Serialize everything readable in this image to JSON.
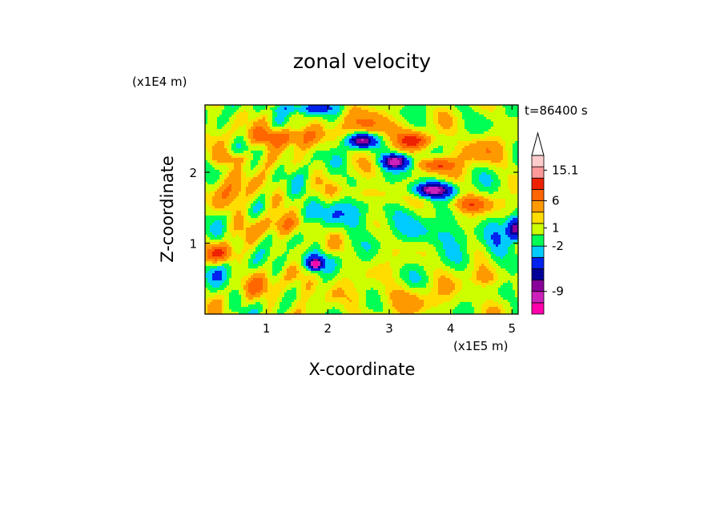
{
  "chart_data": {
    "type": "heatmap",
    "title": "zonal velocity",
    "xlabel": "X-coordinate",
    "ylabel": "Z-coordinate",
    "x_unit": "(x1E5 m)",
    "y_unit": "(x1E4 m)",
    "time_label": "t=86400 s",
    "xlim": [
      0,
      5.1
    ],
    "ylim": [
      0,
      2.95
    ],
    "x_ticks": [
      {
        "value": 1,
        "label": "1"
      },
      {
        "value": 2,
        "label": "2"
      },
      {
        "value": 3,
        "label": "3"
      },
      {
        "value": 4,
        "label": "4"
      },
      {
        "value": 5,
        "label": "5"
      }
    ],
    "y_ticks": [
      {
        "value": 1,
        "label": "1"
      },
      {
        "value": 2,
        "label": "2"
      }
    ],
    "colorbar": {
      "levels": [
        {
          "color": "#ff00aa"
        },
        {
          "color": "#cc22bb"
        },
        {
          "color": "#880099"
        },
        {
          "color": "#000099"
        },
        {
          "color": "#0022ee"
        },
        {
          "color": "#00ccff"
        },
        {
          "color": "#00ff55"
        },
        {
          "color": "#ccff00"
        },
        {
          "color": "#ffdd00"
        },
        {
          "color": "#ff9900"
        },
        {
          "color": "#ff6600"
        },
        {
          "color": "#ee2200"
        },
        {
          "color": "#ff9999"
        },
        {
          "color": "#ffcccc"
        },
        {
          "color": "#ffffff"
        }
      ],
      "labels": [
        {
          "text": "-9",
          "level": 2
        },
        {
          "text": "-2",
          "level": 6
        },
        {
          "text": "1",
          "level": 7.6
        },
        {
          "text": "6",
          "level": 10
        },
        {
          "text": "15.1",
          "level": 12.7
        }
      ]
    },
    "field_blobs": [
      {
        "x": 1.25,
        "z": 2.5,
        "sx": 0.55,
        "sz": 0.14,
        "v": 6
      },
      {
        "x": 0.5,
        "z": 2.2,
        "sx": 0.35,
        "sz": 0.1,
        "v": 3
      },
      {
        "x": 2.7,
        "z": 2.65,
        "sx": 0.4,
        "sz": 0.18,
        "v": 5
      },
      {
        "x": 2.55,
        "z": 2.45,
        "sx": 0.22,
        "sz": 0.1,
        "v": -12
      },
      {
        "x": 3.1,
        "z": 2.15,
        "sx": 0.22,
        "sz": 0.1,
        "v": -12
      },
      {
        "x": 3.7,
        "z": 1.75,
        "sx": 0.32,
        "sz": 0.1,
        "v": -12
      },
      {
        "x": 3.45,
        "z": 2.45,
        "sx": 0.3,
        "sz": 0.12,
        "v": 6
      },
      {
        "x": 3.75,
        "z": 2.1,
        "sx": 0.3,
        "sz": 0.1,
        "v": 6
      },
      {
        "x": 4.3,
        "z": 1.55,
        "sx": 0.35,
        "sz": 0.12,
        "v": 5
      },
      {
        "x": 4.4,
        "z": 2.3,
        "sx": 0.4,
        "sz": 0.2,
        "v": 3
      },
      {
        "x": 2.7,
        "z": 1.7,
        "sx": 0.45,
        "sz": 0.12,
        "v": 2.5
      },
      {
        "x": 2.2,
        "z": 1.4,
        "sx": 0.8,
        "sz": 0.2,
        "v": -3
      },
      {
        "x": 3.8,
        "z": 1.15,
        "sx": 0.5,
        "sz": 0.2,
        "v": -3
      },
      {
        "x": 1.7,
        "z": 0.75,
        "sx": 0.4,
        "sz": 0.12,
        "v": -4
      },
      {
        "x": 1.8,
        "z": 0.7,
        "sx": 0.1,
        "sz": 0.07,
        "v": -12
      },
      {
        "x": 0.15,
        "z": 0.6,
        "sx": 0.2,
        "sz": 0.18,
        "v": -4
      },
      {
        "x": 0.25,
        "z": 0.85,
        "sx": 0.25,
        "sz": 0.15,
        "v": 6
      },
      {
        "x": 1.3,
        "z": 1.25,
        "sx": 0.5,
        "sz": 0.15,
        "v": 4
      },
      {
        "x": 3.3,
        "z": 0.2,
        "sx": 0.9,
        "sz": 0.2,
        "v": 2
      },
      {
        "x": 1.1,
        "z": 0.4,
        "sx": 0.6,
        "sz": 0.18,
        "v": 2.5
      },
      {
        "x": 5.05,
        "z": 1.2,
        "sx": 0.12,
        "sz": 0.15,
        "v": -12
      },
      {
        "x": 4.6,
        "z": 0.5,
        "sx": 0.3,
        "sz": 0.15,
        "v": 3
      },
      {
        "x": 2.0,
        "z": 0.55,
        "sx": 0.7,
        "sz": 0.25,
        "v": 0.5
      },
      {
        "x": 3.0,
        "z": 0.9,
        "sx": 0.6,
        "sz": 0.15,
        "v": 0.3
      },
      {
        "x": 1.6,
        "z": 2.9,
        "sx": 0.5,
        "sz": 0.08,
        "v": -5
      },
      {
        "x": 4.75,
        "z": 0.9,
        "sx": 0.2,
        "sz": 0.3,
        "v": -3
      },
      {
        "x": 0.5,
        "z": 1.7,
        "sx": 0.45,
        "sz": 0.25,
        "v": 3
      }
    ]
  }
}
